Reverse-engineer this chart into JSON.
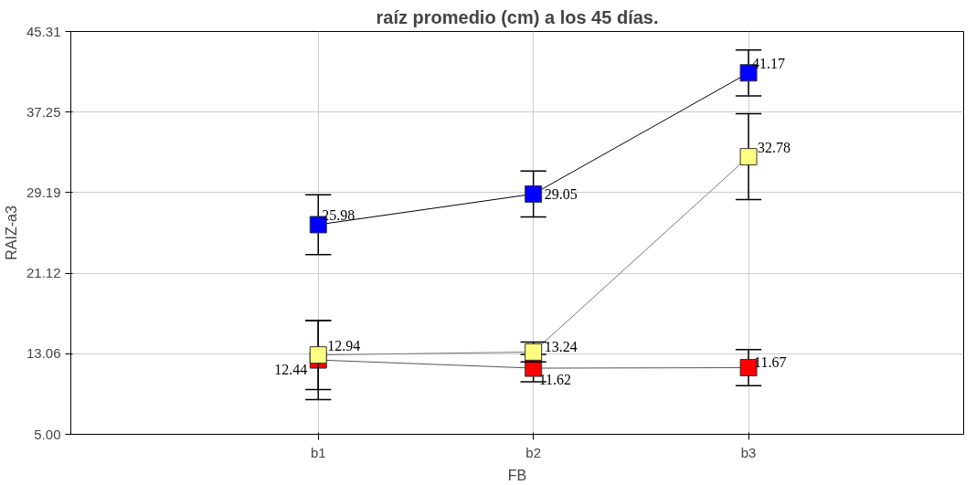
{
  "chart_data": {
    "type": "line",
    "title": "raíz promedio (cm) a los 45 días.",
    "xlabel": "FB",
    "ylabel": "RAIZ-a3",
    "categories": [
      "b1",
      "b2",
      "b3"
    ],
    "series": [
      {
        "color": "#0000ff",
        "values": [
          25.98,
          29.05,
          41.17
        ],
        "errors": [
          3.0,
          2.3,
          2.3
        ]
      },
      {
        "color": "#ff0000",
        "values": [
          12.44,
          11.62,
          11.67
        ],
        "errors": [
          3.97,
          1.37,
          1.8
        ]
      },
      {
        "color": "#ffff80",
        "values": [
          12.94,
          13.24,
          32.78
        ],
        "errors": [
          3.45,
          1.0,
          4.3
        ]
      }
    ],
    "ylim": [
      5.0,
      45.31
    ],
    "yticks": [
      {
        "value": 5.0,
        "label": "5.00"
      },
      {
        "value": 13.06,
        "label": "13.06"
      },
      {
        "value": 21.12,
        "label": "21.12"
      },
      {
        "value": 29.19,
        "label": "29.19"
      },
      {
        "value": 37.25,
        "label": "37.25"
      },
      {
        "value": 45.31,
        "label": "45.31"
      }
    ],
    "grid": true,
    "marker": "square",
    "line_style": "solid",
    "data_labels": true
  }
}
